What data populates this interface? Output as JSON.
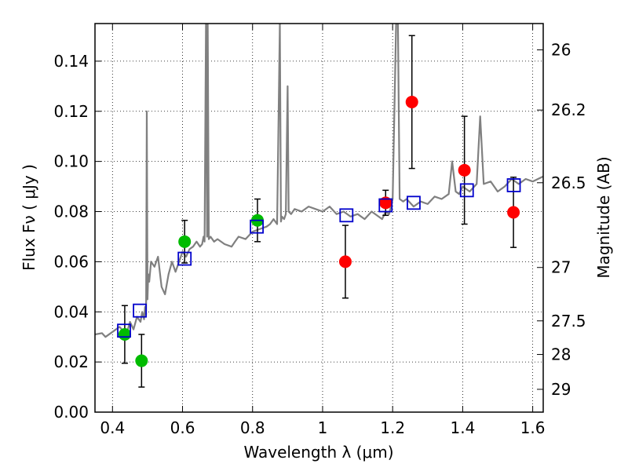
{
  "chart_data": {
    "type": "scatter",
    "xlabel": "Wavelength  λ (μm)",
    "ylabel": "Flux  Fν  ( μJy )",
    "ylabel_right": "Magnitude (AB)",
    "xlim": [
      0.35,
      1.63
    ],
    "ylim": [
      0.0,
      0.155
    ],
    "grid": true,
    "x_ticks": [
      0.4,
      0.6,
      0.8,
      1.0,
      1.2,
      1.4,
      1.6
    ],
    "x_tick_labels": [
      "0.4",
      "0.6",
      "0.8",
      "1",
      "1.2",
      "1.4",
      "1.6"
    ],
    "y_ticks": [
      0.0,
      0.02,
      0.04,
      0.06,
      0.08,
      0.1,
      0.12,
      0.14
    ],
    "y_tick_labels": [
      "0.00",
      "0.02",
      "0.04",
      "0.06",
      "0.08",
      "0.10",
      "0.12",
      "0.14"
    ],
    "right_ticks": [
      {
        "label": "26",
        "flux": 0.1445
      },
      {
        "label": "26.2",
        "flux": 0.1205
      },
      {
        "label": "26.5",
        "flux": 0.0915
      },
      {
        "label": "27",
        "flux": 0.0577
      },
      {
        "label": "27.5",
        "flux": 0.0364
      },
      {
        "label": "28",
        "flux": 0.023
      },
      {
        "label": "29",
        "flux": 0.0091
      }
    ],
    "series": [
      {
        "name": "Green photometry",
        "marker": "circle",
        "color": "#00bb00",
        "points": [
          {
            "x": 0.435,
            "y": 0.031,
            "err_lo": 0.0115,
            "err_hi": 0.0115
          },
          {
            "x": 0.483,
            "y": 0.0205,
            "err_lo": 0.0105,
            "err_hi": 0.0105
          },
          {
            "x": 0.606,
            "y": 0.068,
            "err_lo": 0.0085,
            "err_hi": 0.0085
          },
          {
            "x": 0.814,
            "y": 0.0765,
            "err_lo": 0.0085,
            "err_hi": 0.0085
          }
        ]
      },
      {
        "name": "Red photometry",
        "marker": "circle",
        "color": "#ff0000",
        "points": [
          {
            "x": 1.065,
            "y": 0.06,
            "err_lo": 0.0145,
            "err_hi": 0.0145
          },
          {
            "x": 1.18,
            "y": 0.0835,
            "err_lo": 0.005,
            "err_hi": 0.005
          },
          {
            "x": 1.255,
            "y": 0.1237,
            "err_lo": 0.0265,
            "err_hi": 0.0265
          },
          {
            "x": 1.405,
            "y": 0.0965,
            "err_lo": 0.0215,
            "err_hi": 0.0215
          },
          {
            "x": 1.545,
            "y": 0.0797,
            "err_lo": 0.014,
            "err_hi": 0.014
          }
        ]
      },
      {
        "name": "Model photometry",
        "marker": "square",
        "color": "#0000cc",
        "points": [
          {
            "x": 0.433,
            "y": 0.0325
          },
          {
            "x": 0.478,
            "y": 0.0405
          },
          {
            "x": 0.606,
            "y": 0.0612
          },
          {
            "x": 0.812,
            "y": 0.074
          },
          {
            "x": 1.068,
            "y": 0.0785
          },
          {
            "x": 1.18,
            "y": 0.0825
          },
          {
            "x": 1.26,
            "y": 0.0835
          },
          {
            "x": 1.412,
            "y": 0.0885
          },
          {
            "x": 1.546,
            "y": 0.0905
          }
        ]
      },
      {
        "name": "Model spectrum",
        "type": "line",
        "color": "#808080",
        "x": [
          0.35,
          0.37,
          0.38,
          0.4,
          0.42,
          0.44,
          0.45,
          0.46,
          0.47,
          0.48,
          0.485,
          0.49,
          0.493,
          0.496,
          0.498,
          0.5,
          0.502,
          0.505,
          0.51,
          0.52,
          0.53,
          0.54,
          0.55,
          0.56,
          0.57,
          0.58,
          0.59,
          0.6,
          0.61,
          0.62,
          0.63,
          0.64,
          0.65,
          0.656,
          0.66,
          0.663,
          0.667,
          0.67,
          0.672,
          0.675,
          0.68,
          0.69,
          0.7,
          0.72,
          0.74,
          0.75,
          0.76,
          0.78,
          0.8,
          0.82,
          0.84,
          0.85,
          0.86,
          0.87,
          0.878,
          0.881,
          0.884,
          0.89,
          0.895,
          0.9,
          0.903,
          0.91,
          0.92,
          0.94,
          0.96,
          0.98,
          1.0,
          1.02,
          1.04,
          1.06,
          1.08,
          1.1,
          1.12,
          1.14,
          1.16,
          1.17,
          1.18,
          1.19,
          1.2,
          1.21,
          1.215,
          1.22,
          1.23,
          1.24,
          1.26,
          1.28,
          1.3,
          1.32,
          1.34,
          1.36,
          1.37,
          1.38,
          1.39,
          1.4,
          1.42,
          1.44,
          1.45,
          1.46,
          1.48,
          1.5,
          1.52,
          1.54,
          1.56,
          1.58,
          1.6,
          1.63
        ],
        "y": [
          0.031,
          0.0315,
          0.03,
          0.032,
          0.034,
          0.031,
          0.036,
          0.033,
          0.038,
          0.036,
          0.04,
          0.037,
          0.042,
          0.039,
          0.12,
          0.045,
          0.055,
          0.052,
          0.06,
          0.058,
          0.062,
          0.05,
          0.047,
          0.055,
          0.06,
          0.056,
          0.06,
          0.064,
          0.062,
          0.065,
          0.066,
          0.068,
          0.066,
          0.067,
          0.07,
          0.068,
          0.155,
          0.07,
          0.155,
          0.069,
          0.07,
          0.068,
          0.069,
          0.067,
          0.066,
          0.068,
          0.07,
          0.069,
          0.072,
          0.073,
          0.074,
          0.075,
          0.077,
          0.075,
          0.155,
          0.076,
          0.078,
          0.077,
          0.079,
          0.13,
          0.08,
          0.079,
          0.081,
          0.08,
          0.082,
          0.081,
          0.08,
          0.082,
          0.079,
          0.08,
          0.078,
          0.079,
          0.077,
          0.08,
          0.078,
          0.077,
          0.08,
          0.079,
          0.085,
          0.155,
          0.155,
          0.085,
          0.084,
          0.085,
          0.082,
          0.084,
          0.083,
          0.086,
          0.085,
          0.087,
          0.1,
          0.088,
          0.087,
          0.09,
          0.088,
          0.091,
          0.118,
          0.091,
          0.092,
          0.088,
          0.09,
          0.093,
          0.091,
          0.093,
          0.092,
          0.094
        ]
      }
    ]
  }
}
